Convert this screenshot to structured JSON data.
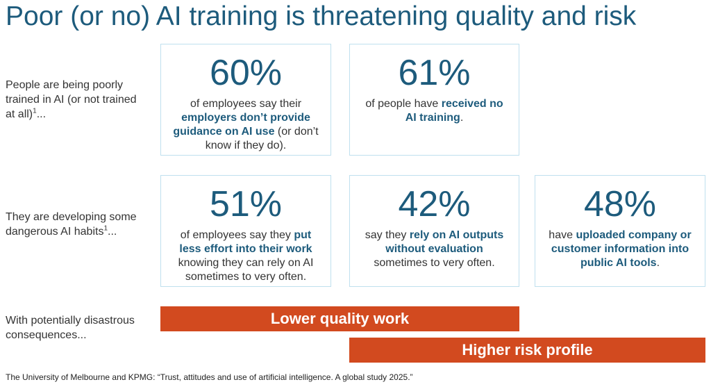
{
  "title": "Poor (or no) AI training is threatening quality and risk",
  "row_labels": [
    [
      {
        "text": "People are being poorly trained in AI (or not trained at all)"
      },
      {
        "text": "1",
        "sup": true
      },
      {
        "text": "..."
      }
    ],
    [
      {
        "text": "They are developing some dangerous AI habits"
      },
      {
        "text": "1",
        "sup": true
      },
      {
        "text": "..."
      }
    ],
    [
      {
        "text": "With potentially disastrous consequences..."
      }
    ]
  ],
  "cards": [
    {
      "stat": "60%",
      "parts": [
        {
          "text": "of employees say their "
        },
        {
          "text": "employers don’t provide guidance on AI use",
          "bold": true
        },
        {
          "text": " (or don’t know if they do)."
        }
      ]
    },
    {
      "stat": "61%",
      "parts": [
        {
          "text": "of people have "
        },
        {
          "text": "received no AI training",
          "bold": true
        },
        {
          "text": "."
        }
      ]
    },
    {
      "stat": "51%",
      "parts": [
        {
          "text": "of employees say they "
        },
        {
          "text": "put less effort into their work",
          "bold": true
        },
        {
          "text": " knowing they can rely on AI sometimes to very often."
        }
      ]
    },
    {
      "stat": "42%",
      "parts": [
        {
          "text": "say they "
        },
        {
          "text": "rely on AI outputs without evaluation",
          "bold": true
        },
        {
          "text": " sometimes to very often."
        }
      ]
    },
    {
      "stat": "48%",
      "parts": [
        {
          "text": "have "
        },
        {
          "text": "uploaded company or customer information into public AI tools",
          "bold": true
        },
        {
          "text": "."
        }
      ]
    }
  ],
  "bars": [
    "Lower quality work",
    "Higher risk profile"
  ],
  "footnote": "The University of Melbourne and KPMG: “Trust, attitudes and use of artificial intelligence. A global study 2025.”"
}
